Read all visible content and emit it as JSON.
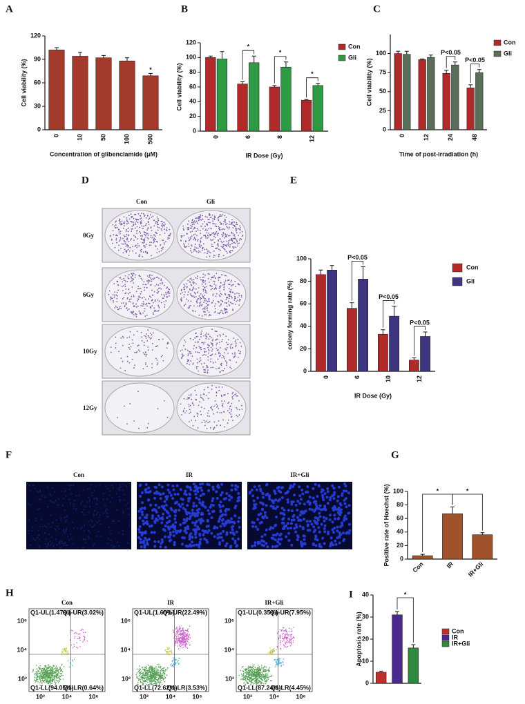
{
  "chart_data": [
    {
      "type": "bar",
      "panel": "A",
      "ylabel": "Cell viability (%)",
      "xlabel": "Concentration of glibenclamide (μM)",
      "categories": [
        "0",
        "10",
        "50",
        "100",
        "500"
      ],
      "values": [
        102,
        94,
        92,
        88,
        69
      ],
      "errors": [
        3,
        5,
        3,
        4,
        3
      ],
      "color": "#a33a2c",
      "ylim": [
        0,
        120
      ],
      "yticks": [
        0,
        30,
        60,
        90,
        120
      ],
      "annotations": [
        "*"
      ]
    },
    {
      "type": "bar",
      "panel": "B",
      "ylabel": "Cell viability (%)",
      "xlabel": "IR Dose (Gy)",
      "categories": [
        "0",
        "6",
        "8",
        "12"
      ],
      "series": [
        {
          "name": "Con",
          "color": "#b02a2a",
          "values": [
            100,
            64,
            60,
            42
          ],
          "errors": [
            2,
            3,
            2,
            1
          ]
        },
        {
          "name": "Gli",
          "color": "#2e9a44",
          "values": [
            98,
            93,
            87,
            62
          ],
          "errors": [
            10,
            9,
            7,
            3
          ]
        }
      ],
      "ylim": [
        0,
        120
      ],
      "yticks": [
        0,
        20,
        40,
        60,
        80,
        100,
        120
      ],
      "annotations": [
        "*",
        "*",
        "*"
      ]
    },
    {
      "type": "bar",
      "panel": "C",
      "ylabel": "Cell viability (%)",
      "xlabel": "Time of post-irradiation (h)",
      "categories": [
        "0",
        "12",
        "24",
        "48"
      ],
      "series": [
        {
          "name": "Con",
          "color": "#b02a2a",
          "values": [
            100,
            92,
            74,
            55
          ],
          "errors": [
            3,
            1,
            4,
            4
          ]
        },
        {
          "name": "Gli",
          "color": "#5a6e5a",
          "values": [
            99,
            95,
            85,
            75
          ],
          "errors": [
            4,
            3,
            4,
            4
          ]
        }
      ],
      "ylim": [
        0,
        125
      ],
      "yticks": [
        0,
        25,
        50,
        75,
        100
      ],
      "annotations": [
        "P<0.05",
        "P<0.05"
      ]
    },
    {
      "type": "bar",
      "panel": "E",
      "ylabel": "colony forming rate (%)",
      "xlabel": "IR Dose (Gy)",
      "categories": [
        "0",
        "6",
        "10",
        "12"
      ],
      "series": [
        {
          "name": "Con",
          "color": "#b02a2a",
          "values": [
            86,
            56,
            33,
            10
          ],
          "errors": [
            4,
            5,
            4,
            2
          ]
        },
        {
          "name": "Gli",
          "color": "#3d3580",
          "values": [
            90,
            82,
            49,
            31
          ],
          "errors": [
            4,
            11,
            9,
            4
          ]
        }
      ],
      "ylim": [
        0,
        100
      ],
      "yticks": [
        0,
        20,
        40,
        60,
        80,
        100
      ],
      "annotations": [
        "P<0.05",
        "P<0.05",
        "P<0.05"
      ]
    },
    {
      "type": "bar",
      "panel": "G",
      "ylabel": "Positive rate of Hoechst (%)",
      "categories": [
        "Con",
        "IR",
        "IR+Gli"
      ],
      "values": [
        5,
        67,
        36
      ],
      "errors": [
        2,
        10,
        3
      ],
      "color": "#a0522d",
      "ylim": [
        0,
        100
      ],
      "yticks": [
        0,
        20,
        40,
        60,
        80,
        100
      ],
      "annotations": [
        "*",
        "*"
      ]
    },
    {
      "type": "bar",
      "panel": "I",
      "ylabel": "Apoptosis rate (%)",
      "categories": [
        "Con",
        "IR",
        "IR+Gli"
      ],
      "values": [
        5,
        31,
        16
      ],
      "errors": [
        0.5,
        1.5,
        1.5
      ],
      "colors": [
        "#c0302a",
        "#4b2a8f",
        "#2e8b3e"
      ],
      "ylim": [
        0,
        40
      ],
      "yticks": [
        0,
        10,
        20,
        30,
        40
      ],
      "annotations": [
        "*"
      ]
    }
  ],
  "image_panels": {
    "D": {
      "panel": "D",
      "columns": [
        "Con",
        "Gli"
      ],
      "rows": [
        "0Gy",
        "6Gy",
        "10Gy",
        "12Gy"
      ]
    },
    "F": {
      "panel": "F",
      "images": [
        "Con",
        "IR",
        "IR+Gli"
      ]
    },
    "H": {
      "panel": "H",
      "ticks": [
        "10²",
        "10⁴",
        "10⁶"
      ],
      "plots": [
        {
          "title": "Con",
          "quadrants": [
            "Q1-UL(1.47%)",
            "Q1-UR(3.02%)",
            "Q1-LL(94.05%)",
            "Q1-LR(0.64%)"
          ]
        },
        {
          "title": "IR",
          "quadrants": [
            "Q1-UL(1.65%)",
            "Q1-UR(22.49%)",
            "Q1-LL(72.62%)",
            "Q1-LR(3.53%)"
          ]
        },
        {
          "title": "IR+Gli",
          "quadrants": [
            "Q1-UL(0.35%)",
            "Q1-UR(7.95%)",
            "Q1-LL(87.24%)",
            "Q1-LR(4.45%)"
          ]
        }
      ]
    }
  }
}
